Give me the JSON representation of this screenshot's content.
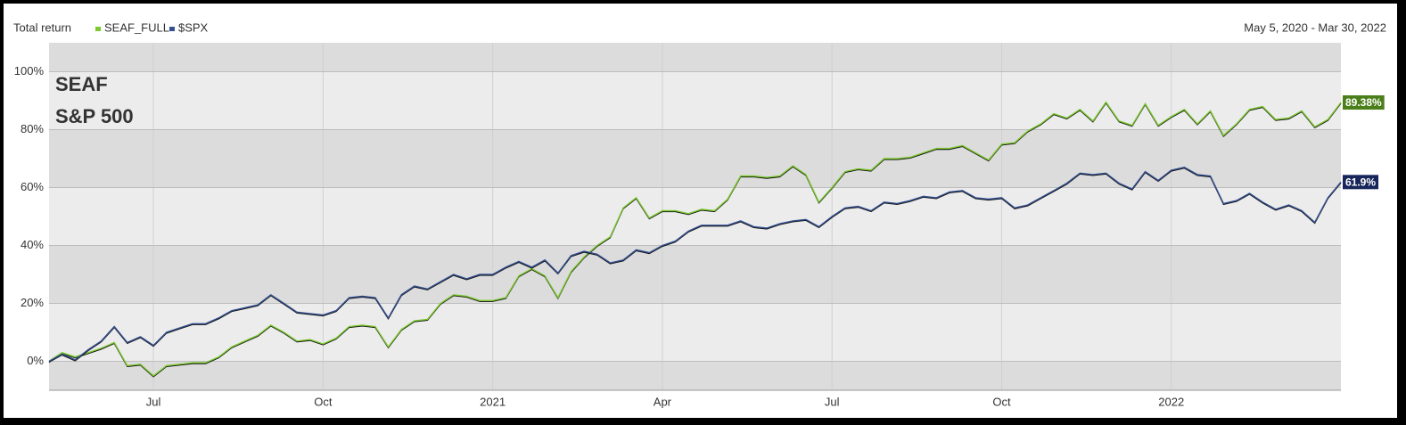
{
  "chart_data": {
    "type": "line",
    "title": "Total return",
    "subtitle": "May 5, 2020 - Mar 30, 2022",
    "categories": [
      null,
      null,
      null,
      null,
      null,
      null,
      null,
      null,
      "Jul",
      null,
      null,
      null,
      null,
      null,
      null,
      null,
      null,
      null,
      null,
      null,
      null,
      "Oct",
      null,
      null,
      null,
      null,
      null,
      null,
      null,
      null,
      null,
      null,
      null,
      null,
      "2021",
      null,
      null,
      null,
      null,
      null,
      null,
      null,
      null,
      null,
      null,
      null,
      null,
      "Apr",
      null,
      null,
      null,
      null,
      null,
      null,
      null,
      null,
      null,
      null,
      null,
      null,
      "Jul",
      null,
      null,
      null,
      null,
      null,
      null,
      null,
      null,
      null,
      null,
      null,
      null,
      "Oct",
      null,
      null,
      null,
      null,
      null,
      null,
      null,
      null,
      null,
      null,
      null,
      null,
      "2022",
      null,
      null,
      null,
      null,
      null,
      null,
      null,
      null,
      null,
      null,
      null,
      null,
      null
    ],
    "series": [
      {
        "name": "SEAF_FULL",
        "color": "#7cc82e",
        "label_color": "#4a7f1a",
        "values": [
          0,
          3,
          1.5,
          3,
          4.5,
          6.5,
          -1.5,
          -1,
          -5,
          -1.5,
          -1,
          -0.5,
          -0.5,
          1.5,
          5,
          7,
          9,
          12.5,
          10,
          7,
          7.5,
          6,
          8,
          12,
          12.5,
          12,
          5,
          11,
          14,
          14.5,
          20,
          23,
          22.5,
          21,
          21,
          22,
          29.5,
          32,
          29.5,
          22,
          31,
          36,
          40,
          43,
          53,
          56.5,
          49.5,
          52,
          52,
          51,
          52.5,
          52,
          56,
          64,
          64,
          63.5,
          64,
          67.5,
          64.5,
          55,
          60,
          65.5,
          66.5,
          66,
          70,
          70,
          70.5,
          72,
          73.5,
          73.5,
          74.5,
          72,
          69.5,
          75,
          75.5,
          79.5,
          82,
          85.5,
          84,
          87,
          83,
          89.5,
          83,
          81.5,
          89,
          81.5,
          84.5,
          87,
          82,
          86.5,
          78,
          82,
          87,
          88,
          83.5,
          84,
          86.5,
          81,
          83.5,
          89.38
        ],
        "value_labels": [
          null,
          null,
          null,
          null,
          null,
          null,
          null,
          null,
          null,
          null,
          null,
          null,
          null,
          null,
          null,
          null,
          null,
          null,
          null,
          null,
          null,
          null,
          null,
          null,
          null,
          null,
          null,
          null,
          null,
          null,
          null,
          null,
          null,
          null,
          null,
          null,
          null,
          null,
          null,
          null,
          null,
          null,
          null,
          null,
          null,
          null,
          null,
          null,
          null,
          null,
          null,
          null,
          null,
          null,
          null,
          null,
          null,
          null,
          null,
          null,
          null,
          null,
          null,
          null,
          null,
          null,
          null,
          null,
          null,
          null,
          null,
          null,
          null,
          null,
          null,
          null,
          null,
          null,
          null,
          null,
          null,
          null,
          null,
          null,
          null,
          null,
          null,
          null,
          null,
          null,
          null,
          null,
          null,
          null,
          null,
          null,
          null,
          null,
          null,
          "89.38%"
        ]
      },
      {
        "name": "$SPX",
        "color": "#34508f",
        "label_color": "#17265a",
        "values": [
          0,
          2.5,
          0.5,
          4,
          7,
          12,
          6.5,
          8.5,
          5.5,
          10,
          11.5,
          13,
          13,
          15,
          17.5,
          18.5,
          19.5,
          23,
          20,
          17,
          16.5,
          16,
          17.5,
          22,
          22.5,
          22,
          15,
          23,
          26,
          25,
          27.5,
          30,
          28.5,
          30,
          30,
          32.5,
          34.5,
          32.5,
          35,
          30.5,
          36.5,
          38,
          37,
          34,
          35,
          38.5,
          37.5,
          40,
          41.5,
          45,
          47,
          47,
          47,
          48.5,
          46.5,
          46,
          47.5,
          48.5,
          49,
          46.5,
          50,
          53,
          53.5,
          52,
          55,
          54.5,
          55.5,
          57,
          56.5,
          58.5,
          59,
          56.5,
          56,
          56.5,
          53,
          54,
          56.5,
          59,
          61.5,
          65,
          64.5,
          65,
          61.5,
          59.5,
          65.5,
          62.5,
          66,
          67,
          64.5,
          64,
          54.5,
          55.5,
          58,
          55,
          52.5,
          54,
          52,
          48,
          56.5,
          61.9
        ],
        "value_labels": [
          null,
          null,
          null,
          null,
          null,
          null,
          null,
          null,
          null,
          null,
          null,
          null,
          null,
          null,
          null,
          null,
          null,
          null,
          null,
          null,
          null,
          null,
          null,
          null,
          null,
          null,
          null,
          null,
          null,
          null,
          null,
          null,
          null,
          null,
          null,
          null,
          null,
          null,
          null,
          null,
          null,
          null,
          null,
          null,
          null,
          null,
          null,
          null,
          null,
          null,
          null,
          null,
          null,
          null,
          null,
          null,
          null,
          null,
          null,
          null,
          null,
          null,
          null,
          null,
          null,
          null,
          null,
          null,
          null,
          null,
          null,
          null,
          null,
          null,
          null,
          null,
          null,
          null,
          null,
          null,
          null,
          null,
          null,
          null,
          null,
          null,
          null,
          null,
          null,
          null,
          null,
          null,
          null,
          null,
          null,
          null,
          null,
          null,
          null,
          "61.9%"
        ]
      }
    ],
    "annotations": [
      {
        "text": "SEAF",
        "color": "#2ab81a"
      },
      {
        "text": "S&P 500",
        "color": "#1f5fd6"
      }
    ],
    "ylim": [
      -10,
      110
    ],
    "yticks": [
      {
        "value": 0,
        "label": "0%"
      },
      {
        "value": 20,
        "label": "20%"
      },
      {
        "value": 40,
        "label": "40%"
      },
      {
        "value": 60,
        "label": "60%"
      },
      {
        "value": 80,
        "label": "80%"
      },
      {
        "value": 100,
        "label": "100%"
      }
    ],
    "grid": true
  }
}
